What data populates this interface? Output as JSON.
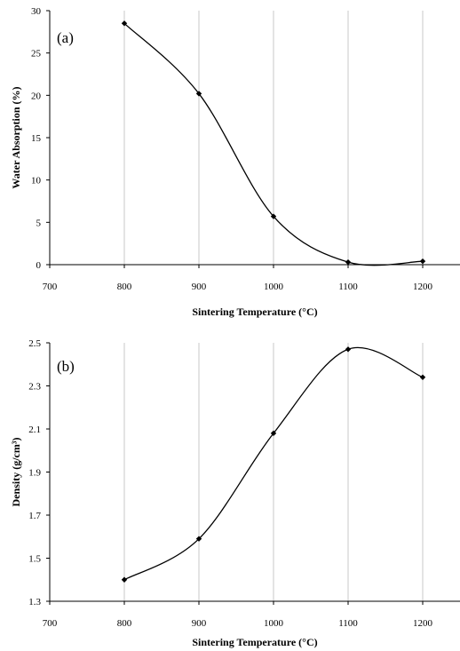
{
  "chart_data": [
    {
      "type": "line",
      "panel_label": "(a)",
      "xlabel": "Sintering Temperature (°C)",
      "ylabel": "Water Absorption (%)",
      "xlim": [
        700,
        1250
      ],
      "ylim": [
        0,
        30
      ],
      "xticks": [
        700,
        800,
        900,
        1000,
        1100,
        1200
      ],
      "yticks": [
        0,
        5,
        10,
        15,
        20,
        25,
        30
      ],
      "grid": "vertical",
      "smooth": true,
      "x": [
        800,
        900,
        1000,
        1100,
        1200
      ],
      "series": [
        {
          "values": [
            28.5,
            20.2,
            5.7,
            0.3,
            0.4
          ],
          "color": "#000000",
          "marker": "diamond"
        }
      ]
    },
    {
      "type": "line",
      "panel_label": "(b)",
      "xlabel": "Sintering Temperature (°C)",
      "ylabel": "Density (g/cm³)",
      "xlim": [
        700,
        1250
      ],
      "ylim": [
        1.3,
        2.5
      ],
      "xticks": [
        700,
        800,
        900,
        1000,
        1100,
        1200
      ],
      "yticks": [
        "1.3",
        "1.5",
        "1.7",
        "1.9",
        "2.1",
        "2.3",
        "2.5"
      ],
      "grid": "vertical",
      "smooth": true,
      "x": [
        800,
        900,
        1000,
        1100,
        1200
      ],
      "series": [
        {
          "values": [
            1.4,
            1.59,
            2.08,
            2.47,
            2.34
          ],
          "color": "#000000",
          "marker": "diamond"
        }
      ]
    }
  ]
}
